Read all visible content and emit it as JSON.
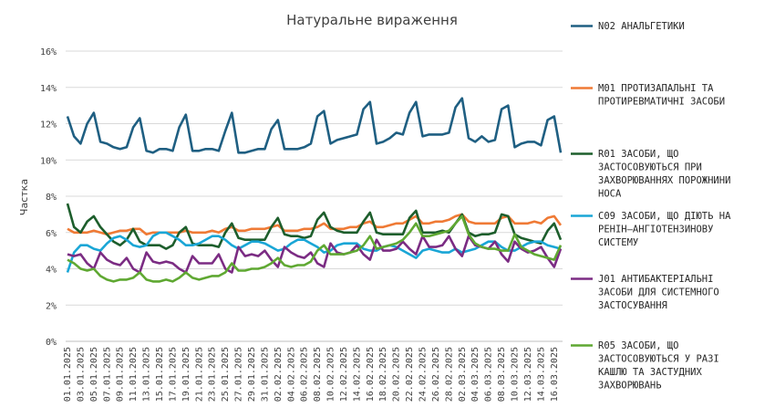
{
  "chart_data": {
    "type": "line",
    "title": "Натуральне  вираження",
    "ylabel": "Частка",
    "xlabel": "",
    "ylim": [
      0,
      16
    ],
    "yticks": [
      "0%",
      "2%",
      "4%",
      "6%",
      "8%",
      "10%",
      "12%",
      "14%",
      "16%"
    ],
    "grid": true,
    "legend_position": "right",
    "x_tick_labels": [
      "01.01.2025",
      "03.01.2025",
      "05.01.2025",
      "07.01.2025",
      "09.01.2025",
      "11.01.2025",
      "13.01.2025",
      "15.01.2025",
      "17.01.2025",
      "19.01.2025",
      "21.01.2025",
      "23.01.2025",
      "25.01.2025",
      "27.01.2025",
      "29.01.2025",
      "31.01.2025",
      "02.02.2025",
      "04.02.2025",
      "06.02.2025",
      "08.02.2025",
      "10.02.2025",
      "12.02.2025",
      "14.02.2025",
      "16.02.2025",
      "18.02.2025",
      "20.02.2025",
      "22.02.2025",
      "24.02.2025",
      "26.02.2025",
      "28.02.2025",
      "02.03.2025",
      "04.03.2025",
      "06.03.2025",
      "08.03.2025",
      "10.03.2025",
      "12.03.2025",
      "14.03.2025",
      "16.03.2025"
    ],
    "series": [
      {
        "name": "N02  АНАЛЬГЕТИКИ",
        "color": "#1f5f82",
        "values": [
          12.4,
          11.3,
          10.9,
          12.0,
          12.6,
          11.0,
          10.9,
          10.7,
          10.6,
          10.7,
          11.8,
          12.3,
          10.5,
          10.4,
          10.6,
          10.6,
          10.5,
          11.8,
          12.5,
          10.5,
          10.5,
          10.6,
          10.6,
          10.5,
          11.6,
          12.6,
          10.4,
          10.4,
          10.5,
          10.6,
          10.6,
          11.7,
          12.2,
          10.6,
          10.6,
          10.6,
          10.7,
          10.9,
          12.4,
          12.7,
          10.9,
          11.1,
          11.2,
          11.3,
          11.4,
          12.8,
          13.2,
          10.9,
          11.0,
          11.2,
          11.5,
          11.4,
          12.6,
          13.2,
          11.3,
          11.4,
          11.4,
          11.4,
          11.5,
          12.9,
          13.4,
          11.2,
          11.0,
          11.3,
          11.0,
          11.1,
          12.8,
          13.0,
          10.7,
          10.9,
          11.0,
          11.0,
          10.8,
          12.2,
          12.4,
          10.4
        ]
      },
      {
        "name": "M01  ПРОТИЗАПАЛЬНІ  ТА  ПРОТИРЕВМАТИЧНІ  ЗАСОБИ",
        "color": "#ef7a35",
        "values": [
          6.2,
          6.0,
          6.0,
          6.0,
          6.1,
          6.0,
          5.9,
          6.0,
          6.1,
          6.1,
          6.2,
          6.2,
          5.9,
          6.0,
          6.0,
          6.0,
          6.0,
          6.0,
          6.1,
          6.0,
          6.0,
          6.0,
          6.1,
          6.0,
          6.2,
          6.3,
          6.1,
          6.1,
          6.2,
          6.2,
          6.2,
          6.3,
          6.4,
          6.1,
          6.1,
          6.1,
          6.2,
          6.2,
          6.3,
          6.5,
          6.2,
          6.2,
          6.2,
          6.3,
          6.3,
          6.5,
          6.6,
          6.3,
          6.3,
          6.4,
          6.5,
          6.5,
          6.7,
          6.9,
          6.5,
          6.5,
          6.6,
          6.6,
          6.7,
          6.9,
          7.0,
          6.6,
          6.5,
          6.5,
          6.5,
          6.5,
          6.8,
          6.9,
          6.5,
          6.5,
          6.5,
          6.6,
          6.5,
          6.8,
          6.9,
          6.4
        ]
      },
      {
        "name": "R01  ЗАСОБИ,  ЩО  ЗАСТОСОВУЮТЬСЯ  ПРИ  ЗАХВОРЮВАННЯХ  ПОРОЖНИНИ  НОСА",
        "color": "#1d5e2c",
        "values": [
          7.6,
          6.3,
          6.0,
          6.6,
          6.9,
          6.3,
          5.9,
          5.5,
          5.3,
          5.6,
          6.2,
          5.5,
          5.3,
          5.3,
          5.3,
          5.1,
          5.3,
          6.0,
          6.3,
          5.4,
          5.3,
          5.3,
          5.3,
          5.2,
          6.0,
          6.5,
          5.7,
          5.6,
          5.6,
          5.6,
          5.6,
          6.3,
          6.8,
          5.9,
          5.8,
          5.8,
          5.7,
          5.8,
          6.7,
          7.1,
          6.3,
          6.1,
          6.0,
          6.0,
          6.0,
          6.6,
          7.1,
          6.0,
          5.9,
          5.9,
          5.9,
          5.9,
          6.8,
          7.2,
          6.0,
          6.0,
          6.0,
          6.1,
          6.0,
          6.5,
          7.0,
          6.0,
          5.8,
          5.9,
          5.9,
          6.0,
          7.0,
          6.9,
          5.9,
          5.7,
          5.6,
          5.5,
          5.4,
          6.1,
          6.5,
          5.6
        ]
      },
      {
        "name": "C09  ЗАСОБИ,  ЩО  ДІЮТЬ  НА  РЕНІН–АНГІОТЕНЗИНОВУ  СИСТЕМУ",
        "color": "#1aa6d6",
        "values": [
          3.8,
          4.9,
          5.3,
          5.3,
          5.1,
          5.0,
          5.4,
          5.7,
          5.8,
          5.6,
          5.3,
          5.2,
          5.3,
          5.8,
          6.0,
          6.0,
          5.8,
          5.6,
          5.3,
          5.3,
          5.4,
          5.6,
          5.8,
          5.8,
          5.6,
          5.3,
          5.1,
          5.3,
          5.5,
          5.5,
          5.4,
          5.2,
          5.0,
          5.1,
          5.4,
          5.6,
          5.6,
          5.4,
          5.2,
          4.9,
          5.0,
          5.3,
          5.4,
          5.4,
          5.4,
          5.1,
          5.0,
          5.0,
          5.2,
          5.3,
          5.2,
          5.0,
          4.8,
          4.6,
          5.0,
          5.1,
          5.0,
          4.9,
          4.9,
          5.1,
          4.9,
          5.0,
          5.1,
          5.3,
          5.5,
          5.5,
          5.2,
          5.0,
          5.0,
          5.2,
          5.4,
          5.5,
          5.5,
          5.3,
          5.2,
          5.1
        ]
      },
      {
        "name": "J01  АНТИБАКТЕРІАЛЬНІ  ЗАСОБИ  ДЛЯ  СИСТЕМНОГО  ЗАСТОСУВАННЯ",
        "color": "#7b2c83",
        "values": [
          4.8,
          4.7,
          4.8,
          4.3,
          4.0,
          4.9,
          4.5,
          4.3,
          4.2,
          4.6,
          4.0,
          3.8,
          4.9,
          4.4,
          4.3,
          4.4,
          4.3,
          4.0,
          3.8,
          4.7,
          4.3,
          4.3,
          4.3,
          4.8,
          4.0,
          3.8,
          5.2,
          4.7,
          4.8,
          4.7,
          5.0,
          4.5,
          4.1,
          5.2,
          4.9,
          4.7,
          4.6,
          4.9,
          4.3,
          4.1,
          5.4,
          4.9,
          4.8,
          4.9,
          5.3,
          4.8,
          4.5,
          5.6,
          5.0,
          5.0,
          5.1,
          5.5,
          5.1,
          4.8,
          5.8,
          5.2,
          5.2,
          5.3,
          5.8,
          5.1,
          4.7,
          5.8,
          5.3,
          5.2,
          5.1,
          5.5,
          4.8,
          4.4,
          5.5,
          5.1,
          4.9,
          5.0,
          5.2,
          4.6,
          4.1,
          5.1
        ]
      },
      {
        "name": "R05  ЗАСОБИ,  ЩО  ЗАСТОСОВУЮТЬСЯ  У  РАЗІ  КАШЛЮ  ТА  ЗАСТУДНИХ  ЗАХВОРЮВАНЬ",
        "color": "#5fa832",
        "values": [
          4.5,
          4.3,
          4.0,
          3.9,
          4.0,
          3.6,
          3.4,
          3.3,
          3.4,
          3.4,
          3.5,
          3.8,
          3.4,
          3.3,
          3.3,
          3.4,
          3.3,
          3.5,
          3.8,
          3.5,
          3.4,
          3.5,
          3.6,
          3.6,
          3.8,
          4.3,
          3.9,
          3.9,
          4.0,
          4.0,
          4.1,
          4.3,
          4.6,
          4.2,
          4.1,
          4.2,
          4.2,
          4.4,
          5.0,
          5.3,
          4.8,
          4.8,
          4.8,
          4.9,
          5.0,
          5.3,
          5.8,
          5.1,
          5.2,
          5.3,
          5.4,
          5.6,
          6.0,
          6.5,
          5.8,
          5.8,
          5.9,
          6.0,
          6.1,
          6.5,
          6.9,
          5.9,
          5.4,
          5.2,
          5.1,
          5.1,
          5.0,
          5.0,
          5.9,
          5.2,
          5.0,
          4.8,
          4.7,
          4.6,
          4.5,
          5.3
        ]
      }
    ]
  }
}
